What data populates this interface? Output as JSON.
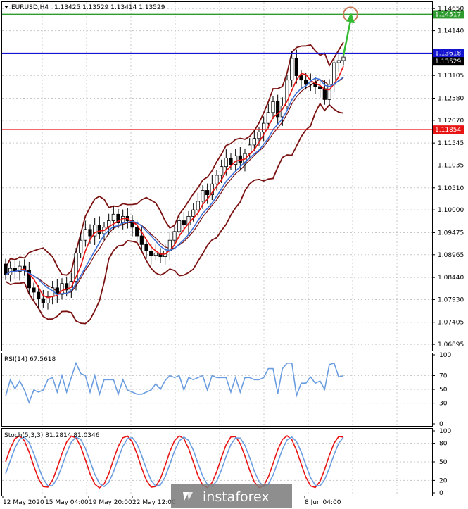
{
  "header": {
    "symbol": "EURUSD,H4",
    "ohlc": "1.13425 1.13529 1.13414 1.13529"
  },
  "chart_data": {
    "type": "candlestick",
    "price_axis": {
      "ymin": 1.0675,
      "ymax": 1.148,
      "ticks": [
        "1.14650",
        "1.14140",
        "1.13105",
        "1.12580",
        "1.12070",
        "1.11545",
        "1.11035",
        "1.10510",
        "1.10000",
        "1.09475",
        "1.08965",
        "1.08440",
        "1.07930",
        "1.07405",
        "1.06895"
      ]
    },
    "levels": [
      {
        "name": "resistance-target",
        "value": 1.14517,
        "label": "1.14517",
        "color": "#2e9b2e"
      },
      {
        "name": "resistance",
        "value": 1.13618,
        "label": "1.13618",
        "color": "#1414d0"
      },
      {
        "name": "support",
        "value": 1.11854,
        "label": "1.11854",
        "color": "#e81414"
      }
    ],
    "current_price": {
      "value": 1.13529,
      "label": "1.13529"
    },
    "candles": [
      [
        1.0875,
        1.085
      ],
      [
        1.085,
        1.0865
      ],
      [
        1.0865,
        1.0858
      ],
      [
        1.0858,
        1.087
      ],
      [
        1.087,
        1.086
      ],
      [
        1.086,
        1.082
      ],
      [
        1.082,
        1.081
      ],
      [
        1.081,
        1.0795
      ],
      [
        1.0795,
        1.0785
      ],
      [
        1.0785,
        1.08
      ],
      [
        1.08,
        1.082
      ],
      [
        1.082,
        1.0805
      ],
      [
        1.0805,
        1.083
      ],
      [
        1.083,
        1.0815
      ],
      [
        1.0815,
        1.0835
      ],
      [
        1.0835,
        1.09
      ],
      [
        1.09,
        1.093
      ],
      [
        1.093,
        1.0955
      ],
      [
        1.0955,
        1.094
      ],
      [
        1.094,
        1.0965
      ],
      [
        1.0965,
        1.0945
      ],
      [
        1.0945,
        1.096
      ],
      [
        1.096,
        1.0975
      ],
      [
        1.0975,
        1.099
      ],
      [
        1.099,
        1.097
      ],
      [
        1.097,
        1.0985
      ],
      [
        1.0985,
        1.0975
      ],
      [
        1.0975,
        1.096
      ],
      [
        1.096,
        1.094
      ],
      [
        1.094,
        1.092
      ],
      [
        1.092,
        1.0905
      ],
      [
        1.0905,
        1.0895
      ],
      [
        1.0895,
        1.09
      ],
      [
        1.09,
        1.0892
      ],
      [
        1.0892,
        1.0905
      ],
      [
        1.0905,
        1.093
      ],
      [
        1.093,
        1.095
      ],
      [
        1.095,
        1.0975
      ],
      [
        1.0975,
        1.0965
      ],
      [
        1.0965,
        1.0985
      ],
      [
        1.0985,
        1.1
      ],
      [
        1.1,
        1.102
      ],
      [
        1.102,
        1.1045
      ],
      [
        1.1045,
        1.1035
      ],
      [
        1.1035,
        1.106
      ],
      [
        1.106,
        1.108
      ],
      [
        1.108,
        1.11
      ],
      [
        1.11,
        1.112
      ],
      [
        1.112,
        1.1105
      ],
      [
        1.1105,
        1.1125
      ],
      [
        1.1125,
        1.111
      ],
      [
        1.111,
        1.113
      ],
      [
        1.113,
        1.115
      ],
      [
        1.115,
        1.1165
      ],
      [
        1.1165,
        1.118
      ],
      [
        1.118,
        1.12
      ],
      [
        1.12,
        1.1225
      ],
      [
        1.1225,
        1.125
      ],
      [
        1.125,
        1.1215
      ],
      [
        1.1215,
        1.124
      ],
      [
        1.124,
        1.13
      ],
      [
        1.13,
        1.135
      ],
      [
        1.135,
        1.131
      ],
      [
        1.131,
        1.13
      ],
      [
        1.13,
        1.129
      ],
      [
        1.129,
        1.1295
      ],
      [
        1.1295,
        1.1285
      ],
      [
        1.1285,
        1.128
      ],
      [
        1.128,
        1.1255
      ],
      [
        1.1255,
        1.129
      ],
      [
        1.129,
        1.134
      ],
      [
        1.134,
        1.1345
      ],
      [
        1.1345,
        1.1353
      ]
    ],
    "rsi": {
      "label": "RSI(14) 67.5618",
      "ymin": 0,
      "ymax": 100,
      "levels": [
        70,
        50,
        30
      ],
      "ticks": [
        "100",
        "70",
        "50",
        "30",
        "0"
      ]
    },
    "stochastic": {
      "label": "Stoch(5,3,3) 81.2814 81.0346",
      "ymin": 0,
      "ymax": 100,
      "levels": [
        80,
        50,
        20
      ],
      "ticks": [
        "100",
        "80",
        "50",
        "20",
        "0"
      ]
    },
    "time_axis": [
      "12 May 2020",
      "15 May 04:00",
      "19 May 20:00",
      "22 May 12:00",
      "8 Jun 04:00"
    ],
    "annotation": {
      "type": "arrow",
      "direction": "up",
      "target": 1.14517,
      "color": "#33bb33"
    },
    "indicators": [
      "Bollinger Bands",
      "Moving Average (red)",
      "Moving Average (blue)"
    ]
  },
  "watermark": "instaforex"
}
